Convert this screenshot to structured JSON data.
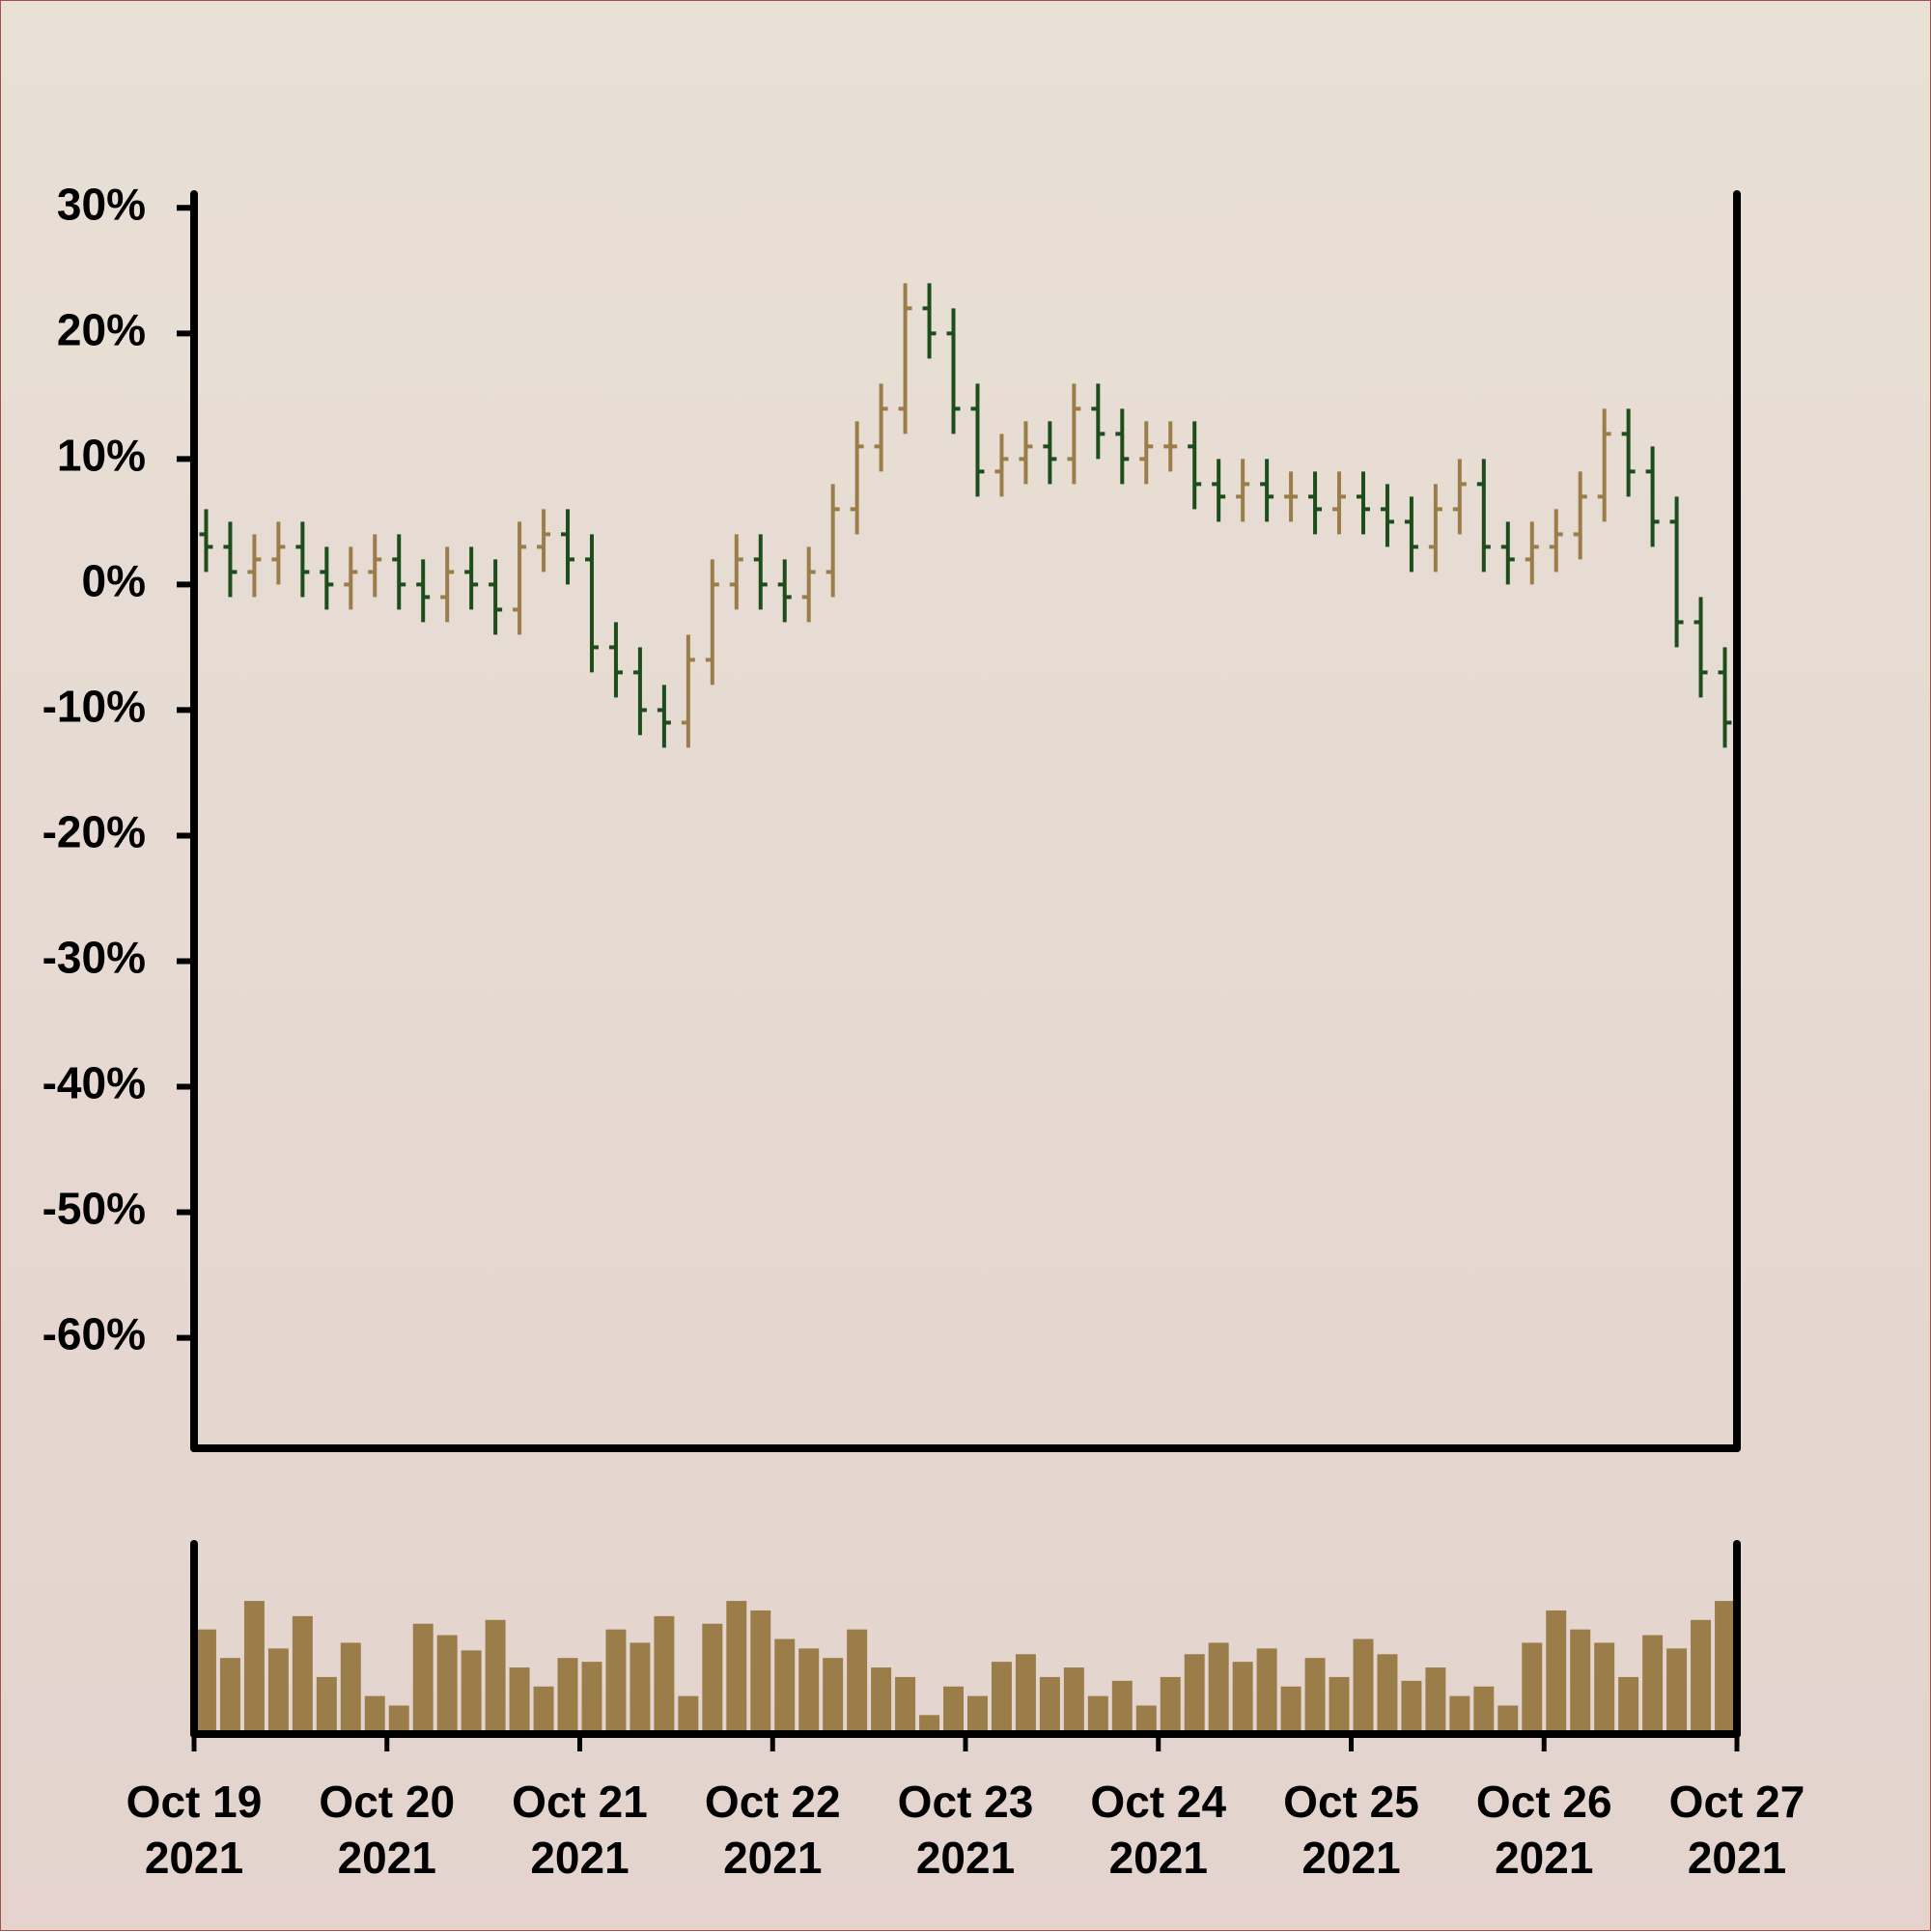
{
  "chart_data": {
    "type": "ohlc",
    "x": [
      0,
      0.125,
      0.25,
      0.375,
      0.5,
      0.625,
      0.75,
      0.875,
      1,
      1.125,
      1.25,
      1.375,
      1.5,
      1.625,
      1.75,
      1.875,
      2,
      2.125,
      2.25,
      2.375,
      2.5,
      2.625,
      2.75,
      2.875,
      3,
      3.125,
      3.25,
      3.375,
      3.5,
      3.625,
      3.75,
      3.875,
      4,
      4.125,
      4.25,
      4.375,
      4.5,
      4.625,
      4.75,
      4.875,
      5,
      5.125,
      5.25,
      5.375,
      5.5,
      5.625,
      5.75,
      5.875,
      6,
      6.125,
      6.25,
      6.375,
      6.5,
      6.625,
      6.75,
      6.875,
      7,
      7.125,
      7.25,
      7.375,
      7.5,
      7.625,
      7.75,
      7.875
    ],
    "open": [
      4,
      3,
      1,
      2,
      3,
      1,
      0,
      1,
      2,
      0,
      -1,
      1,
      0,
      -2,
      3,
      4,
      2,
      -5,
      -7,
      -10,
      -11,
      -6,
      0,
      2,
      0,
      -1,
      1,
      6,
      11,
      14,
      22,
      20,
      14,
      9,
      10,
      11,
      10,
      14,
      12,
      10,
      11,
      11,
      8,
      7,
      8,
      7,
      7,
      6,
      7,
      6,
      5,
      3,
      6,
      8,
      3,
      2,
      3,
      4,
      7,
      12,
      9,
      5,
      -3,
      -7
    ],
    "high": [
      6,
      5,
      4,
      5,
      5,
      3,
      3,
      4,
      4,
      2,
      3,
      3,
      2,
      5,
      6,
      6,
      4,
      -3,
      -5,
      -8,
      -4,
      2,
      4,
      4,
      2,
      3,
      8,
      13,
      16,
      24,
      24,
      22,
      16,
      12,
      13,
      13,
      16,
      16,
      14,
      13,
      13,
      13,
      10,
      10,
      10,
      9,
      9,
      9,
      9,
      8,
      7,
      8,
      10,
      10,
      5,
      5,
      6,
      9,
      14,
      14,
      11,
      7,
      -1,
      -5
    ],
    "low": [
      1,
      -1,
      -1,
      0,
      -1,
      -2,
      -2,
      -1,
      -2,
      -3,
      -3,
      -2,
      -4,
      -4,
      1,
      0,
      -7,
      -9,
      -12,
      -13,
      -13,
      -8,
      -2,
      -2,
      -3,
      -3,
      -1,
      4,
      9,
      12,
      18,
      12,
      7,
      7,
      8,
      8,
      8,
      10,
      8,
      8,
      9,
      6,
      5,
      5,
      5,
      5,
      4,
      4,
      4,
      3,
      1,
      1,
      4,
      1,
      0,
      0,
      1,
      2,
      5,
      7,
      3,
      -5,
      -9,
      -13
    ],
    "close": [
      3,
      1,
      2,
      3,
      1,
      0,
      1,
      2,
      0,
      -1,
      1,
      0,
      -2,
      3,
      4,
      2,
      -5,
      -7,
      -10,
      -11,
      -6,
      0,
      2,
      0,
      -1,
      1,
      6,
      11,
      14,
      22,
      20,
      14,
      9,
      10,
      11,
      10,
      14,
      12,
      10,
      11,
      11,
      8,
      7,
      8,
      7,
      7,
      6,
      7,
      6,
      5,
      3,
      6,
      8,
      3,
      2,
      3,
      4,
      7,
      12,
      9,
      5,
      -3,
      -7,
      -11
    ],
    "volume": [
      55,
      40,
      70,
      45,
      62,
      30,
      48,
      20,
      15,
      58,
      52,
      44,
      60,
      35,
      25,
      40,
      38,
      55,
      48,
      62,
      20,
      58,
      70,
      65,
      50,
      45,
      40,
      55,
      35,
      30,
      10,
      25,
      20,
      38,
      42,
      30,
      35,
      20,
      28,
      15,
      30,
      42,
      48,
      38,
      45,
      25,
      40,
      30,
      50,
      42,
      28,
      35,
      20,
      25,
      15,
      48,
      65,
      55,
      48,
      30,
      52,
      45,
      60,
      70
    ],
    "up_color": "#9b7d4a",
    "down_color": "#1e4d1c",
    "volume_color": "#9b7d4a",
    "xlim": [
      0,
      8
    ],
    "xticks": [
      {
        "value": 0,
        "label": "Oct 19\n2021"
      },
      {
        "value": 1,
        "label": "Oct 20\n2021"
      },
      {
        "value": 2,
        "label": "Oct 21\n2021"
      },
      {
        "value": 3,
        "label": "Oct 22\n2021"
      },
      {
        "value": 4,
        "label": "Oct 23\n2021"
      },
      {
        "value": 5,
        "label": "Oct 24\n2021"
      },
      {
        "value": 6,
        "label": "Oct 25\n2021"
      },
      {
        "value": 7,
        "label": "Oct 26\n2021"
      },
      {
        "value": 8,
        "label": "Oct 27\n2021"
      }
    ],
    "ylim": [
      -68.8,
      31.1
    ],
    "yticks": [
      {
        "value": 30,
        "label": "30%"
      },
      {
        "value": 20,
        "label": "20%"
      },
      {
        "value": 10,
        "label": "10%"
      },
      {
        "value": 0,
        "label": "0%"
      },
      {
        "value": -10,
        "label": "-10%"
      },
      {
        "value": -20,
        "label": "-20%"
      },
      {
        "value": -30,
        "label": "-30%"
      },
      {
        "value": -40,
        "label": "-40%"
      },
      {
        "value": -50,
        "label": "-50%"
      },
      {
        "value": -60,
        "label": "-60%"
      }
    ],
    "volume_ylim": [
      0,
      100
    ]
  }
}
